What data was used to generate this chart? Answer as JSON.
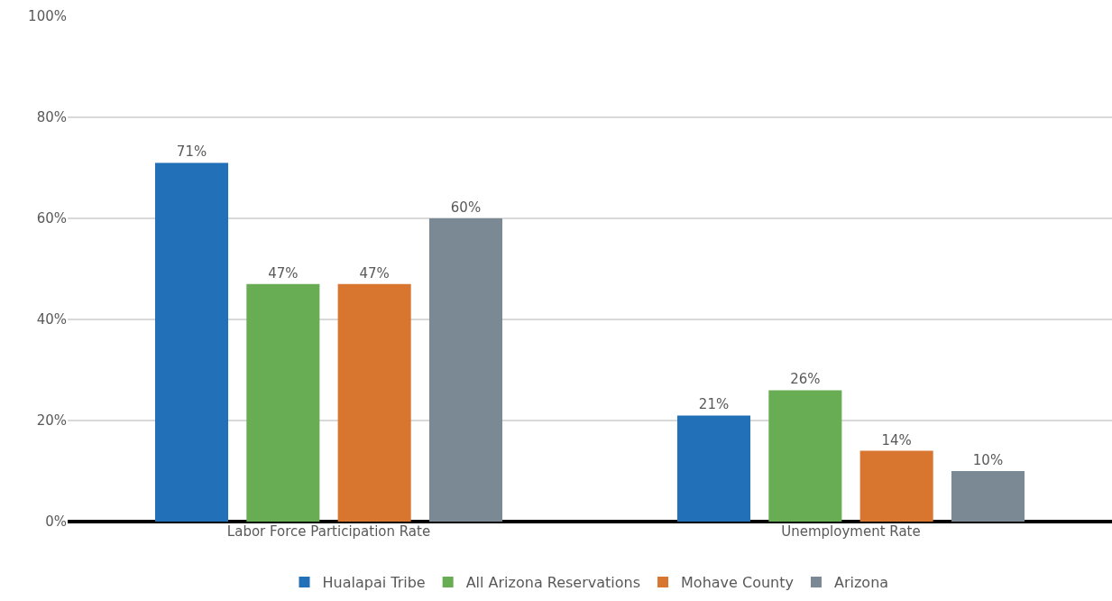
{
  "chart_data": {
    "type": "bar",
    "categories": [
      "Labor Force Participation Rate",
      "Unemployment Rate"
    ],
    "series": [
      {
        "name": "Hualapai Tribe",
        "color": "#2170b8",
        "values": [
          71,
          21
        ],
        "value_labels": [
          "71%",
          "21%"
        ]
      },
      {
        "name": "All Arizona Reservations",
        "color": "#68ad53",
        "values": [
          47,
          26
        ],
        "value_labels": [
          "47%",
          "26%"
        ]
      },
      {
        "name": "Mohave County",
        "color": "#d8752e",
        "values": [
          47,
          14
        ],
        "value_labels": [
          "47%",
          "14%"
        ]
      },
      {
        "name": "Arizona",
        "color": "#7b8994",
        "values": [
          60,
          10
        ],
        "value_labels": [
          "60%",
          "10%"
        ]
      }
    ],
    "ylim": [
      0,
      100
    ],
    "yticks": [
      {
        "value": 0,
        "label": "0%"
      },
      {
        "value": 20,
        "label": "20%"
      },
      {
        "value": 40,
        "label": "40%"
      },
      {
        "value": 60,
        "label": "60%"
      },
      {
        "value": 80,
        "label": "80%"
      },
      {
        "value": 100,
        "label": "100%"
      }
    ],
    "grid": "y",
    "legend": "bottom"
  }
}
